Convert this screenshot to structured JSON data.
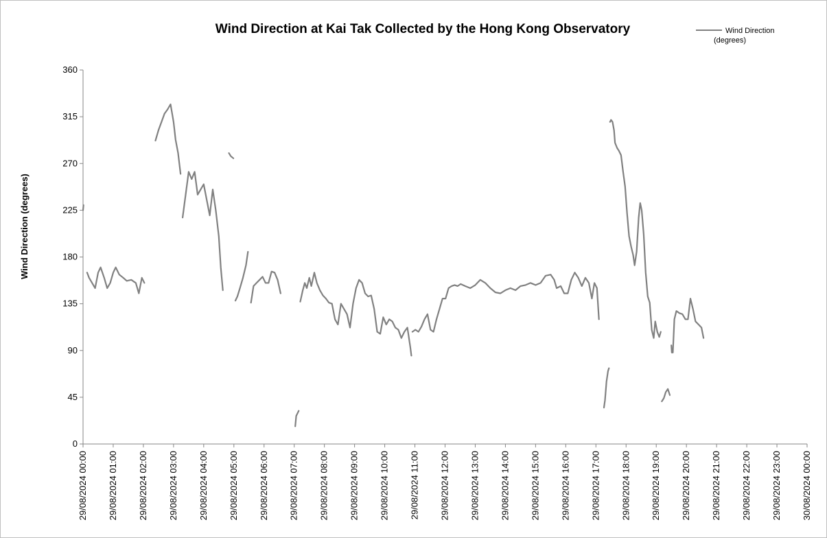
{
  "chart_data": {
    "type": "line",
    "title": "Wind Direction at Kai Tak Collected by the Hong Kong Observatory",
    "xlabel": "",
    "ylabel": "Wind Direction (degrees)",
    "ylim": [
      0,
      360
    ],
    "yticks": [
      0,
      45,
      90,
      135,
      180,
      225,
      270,
      315,
      360
    ],
    "xlim": [
      "29/08/2024 00:00",
      "30/08/2024 00:00"
    ],
    "xtick_labels": [
      "29/08/2024 00:00",
      "29/08/2024 01:00",
      "29/08/2024 02:00",
      "29/08/2024 03:00",
      "29/08/2024 04:00",
      "29/08/2024 05:00",
      "29/08/2024 06:00",
      "29/08/2024 07:00",
      "29/08/2024 08:00",
      "29/08/2024 09:00",
      "29/08/2024 10:00",
      "29/08/2024 11:00",
      "29/08/2024 12:00",
      "29/08/2024 13:00",
      "29/08/2024 14:00",
      "29/08/2024 15:00",
      "29/08/2024 16:00",
      "29/08/2024 17:00",
      "29/08/2024 18:00",
      "29/08/2024 19:00",
      "29/08/2024 20:00",
      "29/08/2024 21:00",
      "29/08/2024 22:00",
      "29/08/2024 23:00",
      "30/08/2024 00:00"
    ],
    "grid": false,
    "legend_position": "top-right",
    "series": [
      {
        "name": "Wind Direction\n(degrees)",
        "color": "#808080",
        "segments": [
          [
            [
              "29/08/2024 00:00",
              225
            ],
            [
              "29/08/2024 00:01",
              230
            ]
          ],
          [
            [
              "29/08/2024 00:08",
              165
            ],
            [
              "29/08/2024 00:12",
              160
            ],
            [
              "29/08/2024 00:18",
              155
            ],
            [
              "29/08/2024 00:24",
              150
            ],
            [
              "29/08/2024 00:30",
              165
            ],
            [
              "29/08/2024 00:35",
              170
            ],
            [
              "29/08/2024 00:42",
              160
            ],
            [
              "29/08/2024 00:48",
              150
            ],
            [
              "29/08/2024 00:54",
              155
            ],
            [
              "29/08/2024 01:00",
              165
            ],
            [
              "29/08/2024 01:05",
              170
            ],
            [
              "29/08/2024 01:12",
              163
            ],
            [
              "29/08/2024 01:20",
              160
            ],
            [
              "29/08/2024 01:27",
              157
            ],
            [
              "29/08/2024 01:36",
              158
            ],
            [
              "29/08/2024 01:45",
              155
            ],
            [
              "29/08/2024 01:51",
              145
            ],
            [
              "29/08/2024 01:57",
              160
            ],
            [
              "29/08/2024 02:02",
              155
            ]
          ],
          [
            [
              "29/08/2024 02:24",
              292
            ],
            [
              "29/08/2024 02:30",
              302
            ],
            [
              "29/08/2024 02:36",
              310
            ],
            [
              "29/08/2024 02:42",
              318
            ],
            [
              "29/08/2024 02:48",
              322
            ],
            [
              "29/08/2024 02:54",
              327
            ],
            [
              "29/08/2024 03:00",
              310
            ],
            [
              "29/08/2024 03:04",
              293
            ],
            [
              "29/08/2024 03:09",
              280
            ],
            [
              "29/08/2024 03:14",
              260
            ]
          ],
          [
            [
              "29/08/2024 03:18",
              218
            ],
            [
              "29/08/2024 03:24",
              240
            ],
            [
              "29/08/2024 03:30",
              262
            ],
            [
              "29/08/2024 03:36",
              255
            ],
            [
              "29/08/2024 03:42",
              262
            ],
            [
              "29/08/2024 03:48",
              240
            ],
            [
              "29/08/2024 03:54",
              245
            ],
            [
              "29/08/2024 04:00",
              250
            ],
            [
              "29/08/2024 04:06",
              235
            ],
            [
              "29/08/2024 04:12",
              220
            ],
            [
              "29/08/2024 04:18",
              245
            ],
            [
              "29/08/2024 04:24",
              225
            ],
            [
              "29/08/2024 04:30",
              200
            ],
            [
              "29/08/2024 04:34",
              170
            ],
            [
              "29/08/2024 04:38",
              148
            ]
          ],
          [
            [
              "29/08/2024 04:50",
              280
            ],
            [
              "29/08/2024 04:54",
              277
            ],
            [
              "29/08/2024 04:59",
              275
            ]
          ],
          [
            [
              "29/08/2024 05:03",
              138
            ],
            [
              "29/08/2024 05:07",
              142
            ],
            [
              "29/08/2024 05:12",
              150
            ],
            [
              "29/08/2024 05:18",
              160
            ],
            [
              "29/08/2024 05:24",
              172
            ],
            [
              "29/08/2024 05:28",
              185
            ]
          ],
          [
            [
              "29/08/2024 05:34",
              136
            ],
            [
              "29/08/2024 05:39",
              152
            ],
            [
              "29/08/2024 05:45",
              155
            ],
            [
              "29/08/2024 05:51",
              158
            ],
            [
              "29/08/2024 05:57",
              161
            ],
            [
              "29/08/2024 06:03",
              155
            ],
            [
              "29/08/2024 06:09",
              155
            ],
            [
              "29/08/2024 06:15",
              166
            ],
            [
              "29/08/2024 06:21",
              165
            ],
            [
              "29/08/2024 06:27",
              158
            ],
            [
              "29/08/2024 06:33",
              145
            ]
          ],
          [
            [
              "29/08/2024 07:02",
              17
            ],
            [
              "29/08/2024 07:04",
              27
            ],
            [
              "29/08/2024 07:07",
              30
            ],
            [
              "29/08/2024 07:09",
              32
            ]
          ],
          [
            [
              "29/08/2024 07:12",
              137
            ],
            [
              "29/08/2024 07:17",
              148
            ],
            [
              "29/08/2024 07:21",
              155
            ],
            [
              "29/08/2024 07:25",
              150
            ],
            [
              "29/08/2024 07:30",
              160
            ],
            [
              "29/08/2024 07:34",
              152
            ],
            [
              "29/08/2024 07:40",
              165
            ],
            [
              "29/08/2024 07:45",
              155
            ],
            [
              "29/08/2024 07:51",
              148
            ],
            [
              "29/08/2024 07:57",
              143
            ],
            [
              "29/08/2024 08:03",
              140
            ],
            [
              "29/08/2024 08:09",
              136
            ],
            [
              "29/08/2024 08:15",
              135
            ],
            [
              "29/08/2024 08:21",
              120
            ],
            [
              "29/08/2024 08:27",
              115
            ],
            [
              "29/08/2024 08:33",
              135
            ],
            [
              "29/08/2024 08:39",
              130
            ],
            [
              "29/08/2024 08:45",
              125
            ],
            [
              "29/08/2024 08:51",
              112
            ],
            [
              "29/08/2024 08:57",
              135
            ],
            [
              "29/08/2024 09:03",
              150
            ],
            [
              "29/08/2024 09:09",
              158
            ],
            [
              "29/08/2024 09:15",
              155
            ],
            [
              "29/08/2024 09:21",
              145
            ],
            [
              "29/08/2024 09:27",
              142
            ],
            [
              "29/08/2024 09:33",
              143
            ],
            [
              "29/08/2024 09:39",
              130
            ],
            [
              "29/08/2024 09:45",
              108
            ],
            [
              "29/08/2024 09:51",
              106
            ],
            [
              "29/08/2024 09:57",
              122
            ],
            [
              "29/08/2024 10:03",
              115
            ],
            [
              "29/08/2024 10:09",
              120
            ],
            [
              "29/08/2024 10:15",
              118
            ],
            [
              "29/08/2024 10:21",
              112
            ],
            [
              "29/08/2024 10:27",
              110
            ],
            [
              "29/08/2024 10:33",
              102
            ],
            [
              "29/08/2024 10:39",
              108
            ],
            [
              "29/08/2024 10:45",
              112
            ],
            [
              "29/08/2024 10:51",
              93
            ],
            [
              "29/08/2024 10:53",
              85
            ]
          ],
          [
            [
              "29/08/2024 10:55",
              108
            ],
            [
              "29/08/2024 11:01",
              110
            ],
            [
              "29/08/2024 11:07",
              108
            ],
            [
              "29/08/2024 11:13",
              113
            ],
            [
              "29/08/2024 11:19",
              120
            ],
            [
              "29/08/2024 11:25",
              125
            ],
            [
              "29/08/2024 11:31",
              110
            ],
            [
              "29/08/2024 11:37",
              108
            ],
            [
              "29/08/2024 11:43",
              120
            ],
            [
              "29/08/2024 11:49",
              130
            ],
            [
              "29/08/2024 11:55",
              140
            ],
            [
              "29/08/2024 12:01",
              140
            ],
            [
              "29/08/2024 12:07",
              150
            ],
            [
              "29/08/2024 12:13",
              152
            ],
            [
              "29/08/2024 12:19",
              153
            ],
            [
              "29/08/2024 12:25",
              152
            ],
            [
              "29/08/2024 12:31",
              154
            ],
            [
              "29/08/2024 12:40",
              152
            ],
            [
              "29/08/2024 12:50",
              150
            ],
            [
              "29/08/2024 13:00",
              153
            ],
            [
              "29/08/2024 13:10",
              158
            ],
            [
              "29/08/2024 13:20",
              155
            ],
            [
              "29/08/2024 13:30",
              150
            ],
            [
              "29/08/2024 13:40",
              146
            ],
            [
              "29/08/2024 13:50",
              145
            ],
            [
              "29/08/2024 14:00",
              148
            ],
            [
              "29/08/2024 14:10",
              150
            ],
            [
              "29/08/2024 14:20",
              148
            ],
            [
              "29/08/2024 14:30",
              152
            ],
            [
              "29/08/2024 14:40",
              153
            ],
            [
              "29/08/2024 14:50",
              155
            ],
            [
              "29/08/2024 15:00",
              153
            ],
            [
              "29/08/2024 15:10",
              155
            ],
            [
              "29/08/2024 15:20",
              162
            ],
            [
              "29/08/2024 15:30",
              163
            ],
            [
              "29/08/2024 15:37",
              158
            ],
            [
              "29/08/2024 15:42",
              150
            ],
            [
              "29/08/2024 15:50",
              152
            ],
            [
              "29/08/2024 15:57",
              145
            ],
            [
              "29/08/2024 16:04",
              145
            ],
            [
              "29/08/2024 16:11",
              158
            ],
            [
              "29/08/2024 16:18",
              165
            ],
            [
              "29/08/2024 16:25",
              160
            ],
            [
              "29/08/2024 16:32",
              152
            ],
            [
              "29/08/2024 16:39",
              160
            ],
            [
              "29/08/2024 16:46",
              155
            ],
            [
              "29/08/2024 16:52",
              140
            ],
            [
              "29/08/2024 16:57",
              155
            ],
            [
              "29/08/2024 17:02",
              150
            ],
            [
              "29/08/2024 17:06",
              120
            ]
          ],
          [
            [
              "29/08/2024 17:16",
              35
            ],
            [
              "29/08/2024 17:18",
              42
            ],
            [
              "29/08/2024 17:21",
              60
            ],
            [
              "29/08/2024 17:24",
              70
            ],
            [
              "29/08/2024 17:26",
              73
            ]
          ],
          [
            [
              "29/08/2024 17:28",
              310
            ],
            [
              "29/08/2024 17:30",
              312
            ],
            [
              "29/08/2024 17:33",
              310
            ],
            [
              "29/08/2024 17:36",
              302
            ],
            [
              "29/08/2024 17:38",
              290
            ],
            [
              "29/08/2024 17:42",
              285
            ],
            [
              "29/08/2024 17:46",
              282
            ],
            [
              "29/08/2024 17:50",
              278
            ],
            [
              "29/08/2024 17:54",
              262
            ],
            [
              "29/08/2024 17:58",
              248
            ],
            [
              "29/08/2024 18:02",
              222
            ],
            [
              "29/08/2024 18:06",
              200
            ],
            [
              "29/08/2024 18:10",
              190
            ],
            [
              "29/08/2024 18:14",
              182
            ],
            [
              "29/08/2024 18:17",
              172
            ],
            [
              "29/08/2024 18:21",
              185
            ],
            [
              "29/08/2024 18:25",
              218
            ],
            [
              "29/08/2024 18:28",
              232
            ],
            [
              "29/08/2024 18:31",
              225
            ],
            [
              "29/08/2024 18:35",
              202
            ],
            [
              "29/08/2024 18:39",
              165
            ],
            [
              "29/08/2024 18:43",
              142
            ],
            [
              "29/08/2024 18:47",
              136
            ],
            [
              "29/08/2024 18:51",
              110
            ],
            [
              "29/08/2024 18:55",
              102
            ],
            [
              "29/08/2024 18:58",
              118
            ],
            [
              "29/08/2024 19:02",
              108
            ],
            [
              "29/08/2024 19:06",
              103
            ],
            [
              "29/08/2024 19:09",
              108
            ]
          ],
          [
            [
              "29/08/2024 19:11",
              41
            ],
            [
              "29/08/2024 19:15",
              44
            ],
            [
              "29/08/2024 19:19",
              50
            ],
            [
              "29/08/2024 19:23",
              53
            ],
            [
              "29/08/2024 19:27",
              47
            ]
          ],
          [
            [
              "29/08/2024 19:30",
              95
            ],
            [
              "29/08/2024 19:31",
              88
            ],
            [
              "29/08/2024 19:33",
              88
            ],
            [
              "29/08/2024 19:36",
              120
            ],
            [
              "29/08/2024 19:40",
              128
            ],
            [
              "29/08/2024 19:46",
              126
            ],
            [
              "29/08/2024 19:52",
              125
            ],
            [
              "29/08/2024 19:58",
              120
            ],
            [
              "29/08/2024 20:03",
              120
            ],
            [
              "29/08/2024 20:08",
              140
            ],
            [
              "29/08/2024 20:13",
              130
            ],
            [
              "29/08/2024 20:18",
              118
            ],
            [
              "29/08/2024 20:24",
              115
            ],
            [
              "29/08/2024 20:30",
              112
            ],
            [
              "29/08/2024 20:34",
              102
            ]
          ]
        ]
      }
    ]
  }
}
